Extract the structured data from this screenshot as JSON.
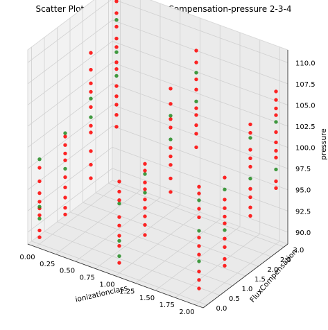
{
  "chart_data": {
    "type": "scatter",
    "projection": "3d",
    "title": "Scatter Plot  ionizationclass-FluxCompensation-pressure  2-3-4",
    "xlabel": "ionizationclass",
    "ylabel": "FluxCompensation",
    "zlabel": "pressure",
    "xlim": [
      -0.1,
      2.1
    ],
    "ylim": [
      -0.15,
      3.15
    ],
    "zlim": [
      88.6,
      111.5
    ],
    "x_ticks": [
      "0.00",
      "0.25",
      "0.50",
      "0.75",
      "1.00",
      "1.25",
      "1.50",
      "1.75",
      "2.00"
    ],
    "y_ticks": [
      "0.0",
      "0.5",
      "1.0",
      "1.5",
      "2.0",
      "2.5",
      "3.0"
    ],
    "z_ticks": [
      "90.0",
      "92.5",
      "95.0",
      "97.5",
      "100.0",
      "102.5",
      "105.0",
      "107.5",
      "110.0"
    ],
    "grid": true,
    "colors": {
      "series_a": "#228b22",
      "series_b": "#ff0000",
      "pane": "#f2f2f2",
      "grid": "#d0d0d0"
    },
    "series": [
      {
        "color": "#228b22",
        "points": [
          [
            0,
            0,
            98.6
          ],
          [
            0,
            0,
            93.0
          ],
          [
            0,
            0,
            91.6
          ],
          [
            0,
            1,
            99.4
          ],
          [
            0,
            1,
            95.2
          ],
          [
            0,
            2,
            101.2
          ],
          [
            0,
            2,
            99.0
          ],
          [
            0,
            3,
            108.2
          ],
          [
            0,
            3,
            104.4
          ],
          [
            0,
            3,
            101.6
          ],
          [
            1,
            0,
            96.8
          ],
          [
            1,
            0,
            92.4
          ],
          [
            1,
            0,
            90.6
          ],
          [
            1,
            1,
            98.0
          ],
          [
            1,
            1,
            95.8
          ],
          [
            1,
            2,
            102.6
          ],
          [
            1,
            2,
            99.8
          ],
          [
            1,
            3,
            105.4
          ],
          [
            1,
            3,
            102.0
          ],
          [
            2,
            0,
            100.6
          ],
          [
            2,
            0,
            97.0
          ],
          [
            2,
            0,
            93.4
          ],
          [
            2,
            1,
            99.6
          ],
          [
            2,
            1,
            94.8
          ],
          [
            2,
            2,
            103.4
          ],
          [
            2,
            2,
            98.6
          ],
          [
            2,
            3,
            103.0
          ],
          [
            2,
            3,
            97.4
          ]
        ]
      },
      {
        "color": "#ff0000",
        "points": [
          [
            0,
            0,
            97.6
          ],
          [
            0,
            0,
            96.0
          ],
          [
            0,
            0,
            94.6
          ],
          [
            0,
            0,
            93.6
          ],
          [
            0,
            0,
            92.8
          ],
          [
            0,
            0,
            92.0
          ],
          [
            0,
            0,
            90.2
          ],
          [
            0,
            0,
            89.4
          ],
          [
            0,
            1,
            99.0
          ],
          [
            0,
            1,
            98.0
          ],
          [
            0,
            1,
            97.0
          ],
          [
            0,
            1,
            96.2
          ],
          [
            0,
            1,
            94.2
          ],
          [
            0,
            1,
            93.0
          ],
          [
            0,
            1,
            91.8
          ],
          [
            0,
            1,
            90.6
          ],
          [
            0,
            1,
            89.8
          ],
          [
            0,
            2,
            106.6
          ],
          [
            0,
            2,
            104.6
          ],
          [
            0,
            2,
            103.0
          ],
          [
            0,
            2,
            102.0
          ],
          [
            0,
            2,
            100.2
          ],
          [
            0,
            2,
            98.0
          ],
          [
            0,
            2,
            97.2
          ],
          [
            0,
            2,
            95.0
          ],
          [
            0,
            2,
            93.4
          ],
          [
            0,
            2,
            91.8
          ],
          [
            0,
            3,
            110.4
          ],
          [
            0,
            3,
            109.0
          ],
          [
            0,
            3,
            107.4
          ],
          [
            0,
            3,
            106.0
          ],
          [
            0,
            3,
            105.0
          ],
          [
            0,
            3,
            103.2
          ],
          [
            0,
            3,
            102.4
          ],
          [
            0,
            3,
            100.4
          ],
          [
            0,
            3,
            99.2
          ],
          [
            0,
            3,
            98.2
          ],
          [
            0,
            3,
            97.0
          ],
          [
            0,
            3,
            95.6
          ],
          [
            1,
            0,
            99.4
          ],
          [
            1,
            0,
            98.2
          ],
          [
            1,
            0,
            97.2
          ],
          [
            1,
            0,
            95.2
          ],
          [
            1,
            0,
            94.2
          ],
          [
            1,
            0,
            93.0
          ],
          [
            1,
            0,
            91.8
          ],
          [
            1,
            0,
            89.8
          ],
          [
            1,
            1,
            99.2
          ],
          [
            1,
            1,
            98.4
          ],
          [
            1,
            1,
            97.0
          ],
          [
            1,
            1,
            96.2
          ],
          [
            1,
            1,
            95.0
          ],
          [
            1,
            1,
            94.0
          ],
          [
            1,
            1,
            93.0
          ],
          [
            1,
            1,
            92.0
          ],
          [
            1,
            1,
            90.8
          ],
          [
            1,
            2,
            105.8
          ],
          [
            1,
            2,
            104.0
          ],
          [
            1,
            2,
            102.2
          ],
          [
            1,
            2,
            101.2
          ],
          [
            1,
            2,
            98.8
          ],
          [
            1,
            2,
            97.8
          ],
          [
            1,
            2,
            96.8
          ],
          [
            1,
            2,
            95.2
          ],
          [
            1,
            2,
            93.6
          ],
          [
            1,
            3,
            108.0
          ],
          [
            1,
            3,
            106.6
          ],
          [
            1,
            3,
            104.6
          ],
          [
            1,
            3,
            103.4
          ],
          [
            1,
            3,
            101.2
          ],
          [
            1,
            3,
            100.4
          ],
          [
            1,
            3,
            99.2
          ],
          [
            1,
            3,
            98.2
          ],
          [
            1,
            3,
            96.6
          ],
          [
            2,
            0,
            102.2
          ],
          [
            2,
            0,
            101.4
          ],
          [
            2,
            0,
            99.6
          ],
          [
            2,
            0,
            98.6
          ],
          [
            2,
            0,
            96.2
          ],
          [
            2,
            0,
            95.2
          ],
          [
            2,
            0,
            94.2
          ],
          [
            2,
            0,
            92.2
          ],
          [
            2,
            0,
            91.2
          ],
          [
            2,
            0,
            90.2
          ],
          [
            2,
            1,
            101.0
          ],
          [
            2,
            1,
            98.4
          ],
          [
            2,
            1,
            97.4
          ],
          [
            2,
            1,
            96.4
          ],
          [
            2,
            1,
            95.6
          ],
          [
            2,
            1,
            93.8
          ],
          [
            2,
            1,
            92.8
          ],
          [
            2,
            1,
            91.4
          ],
          [
            2,
            1,
            90.6
          ],
          [
            2,
            2,
            105.0
          ],
          [
            2,
            2,
            104.0
          ],
          [
            2,
            2,
            102.0
          ],
          [
            2,
            2,
            101.0
          ],
          [
            2,
            2,
            100.0
          ],
          [
            2,
            2,
            97.4
          ],
          [
            2,
            2,
            96.4
          ],
          [
            2,
            2,
            95.2
          ],
          [
            2,
            2,
            94.2
          ],
          [
            2,
            3,
            106.6
          ],
          [
            2,
            3,
            105.6
          ],
          [
            2,
            3,
            104.6
          ],
          [
            2,
            3,
            103.8
          ],
          [
            2,
            3,
            101.8
          ],
          [
            2,
            3,
            100.6
          ],
          [
            2,
            3,
            99.6
          ],
          [
            2,
            3,
            98.8
          ],
          [
            2,
            3,
            96.0
          ],
          [
            2,
            3,
            95.2
          ]
        ]
      }
    ]
  }
}
